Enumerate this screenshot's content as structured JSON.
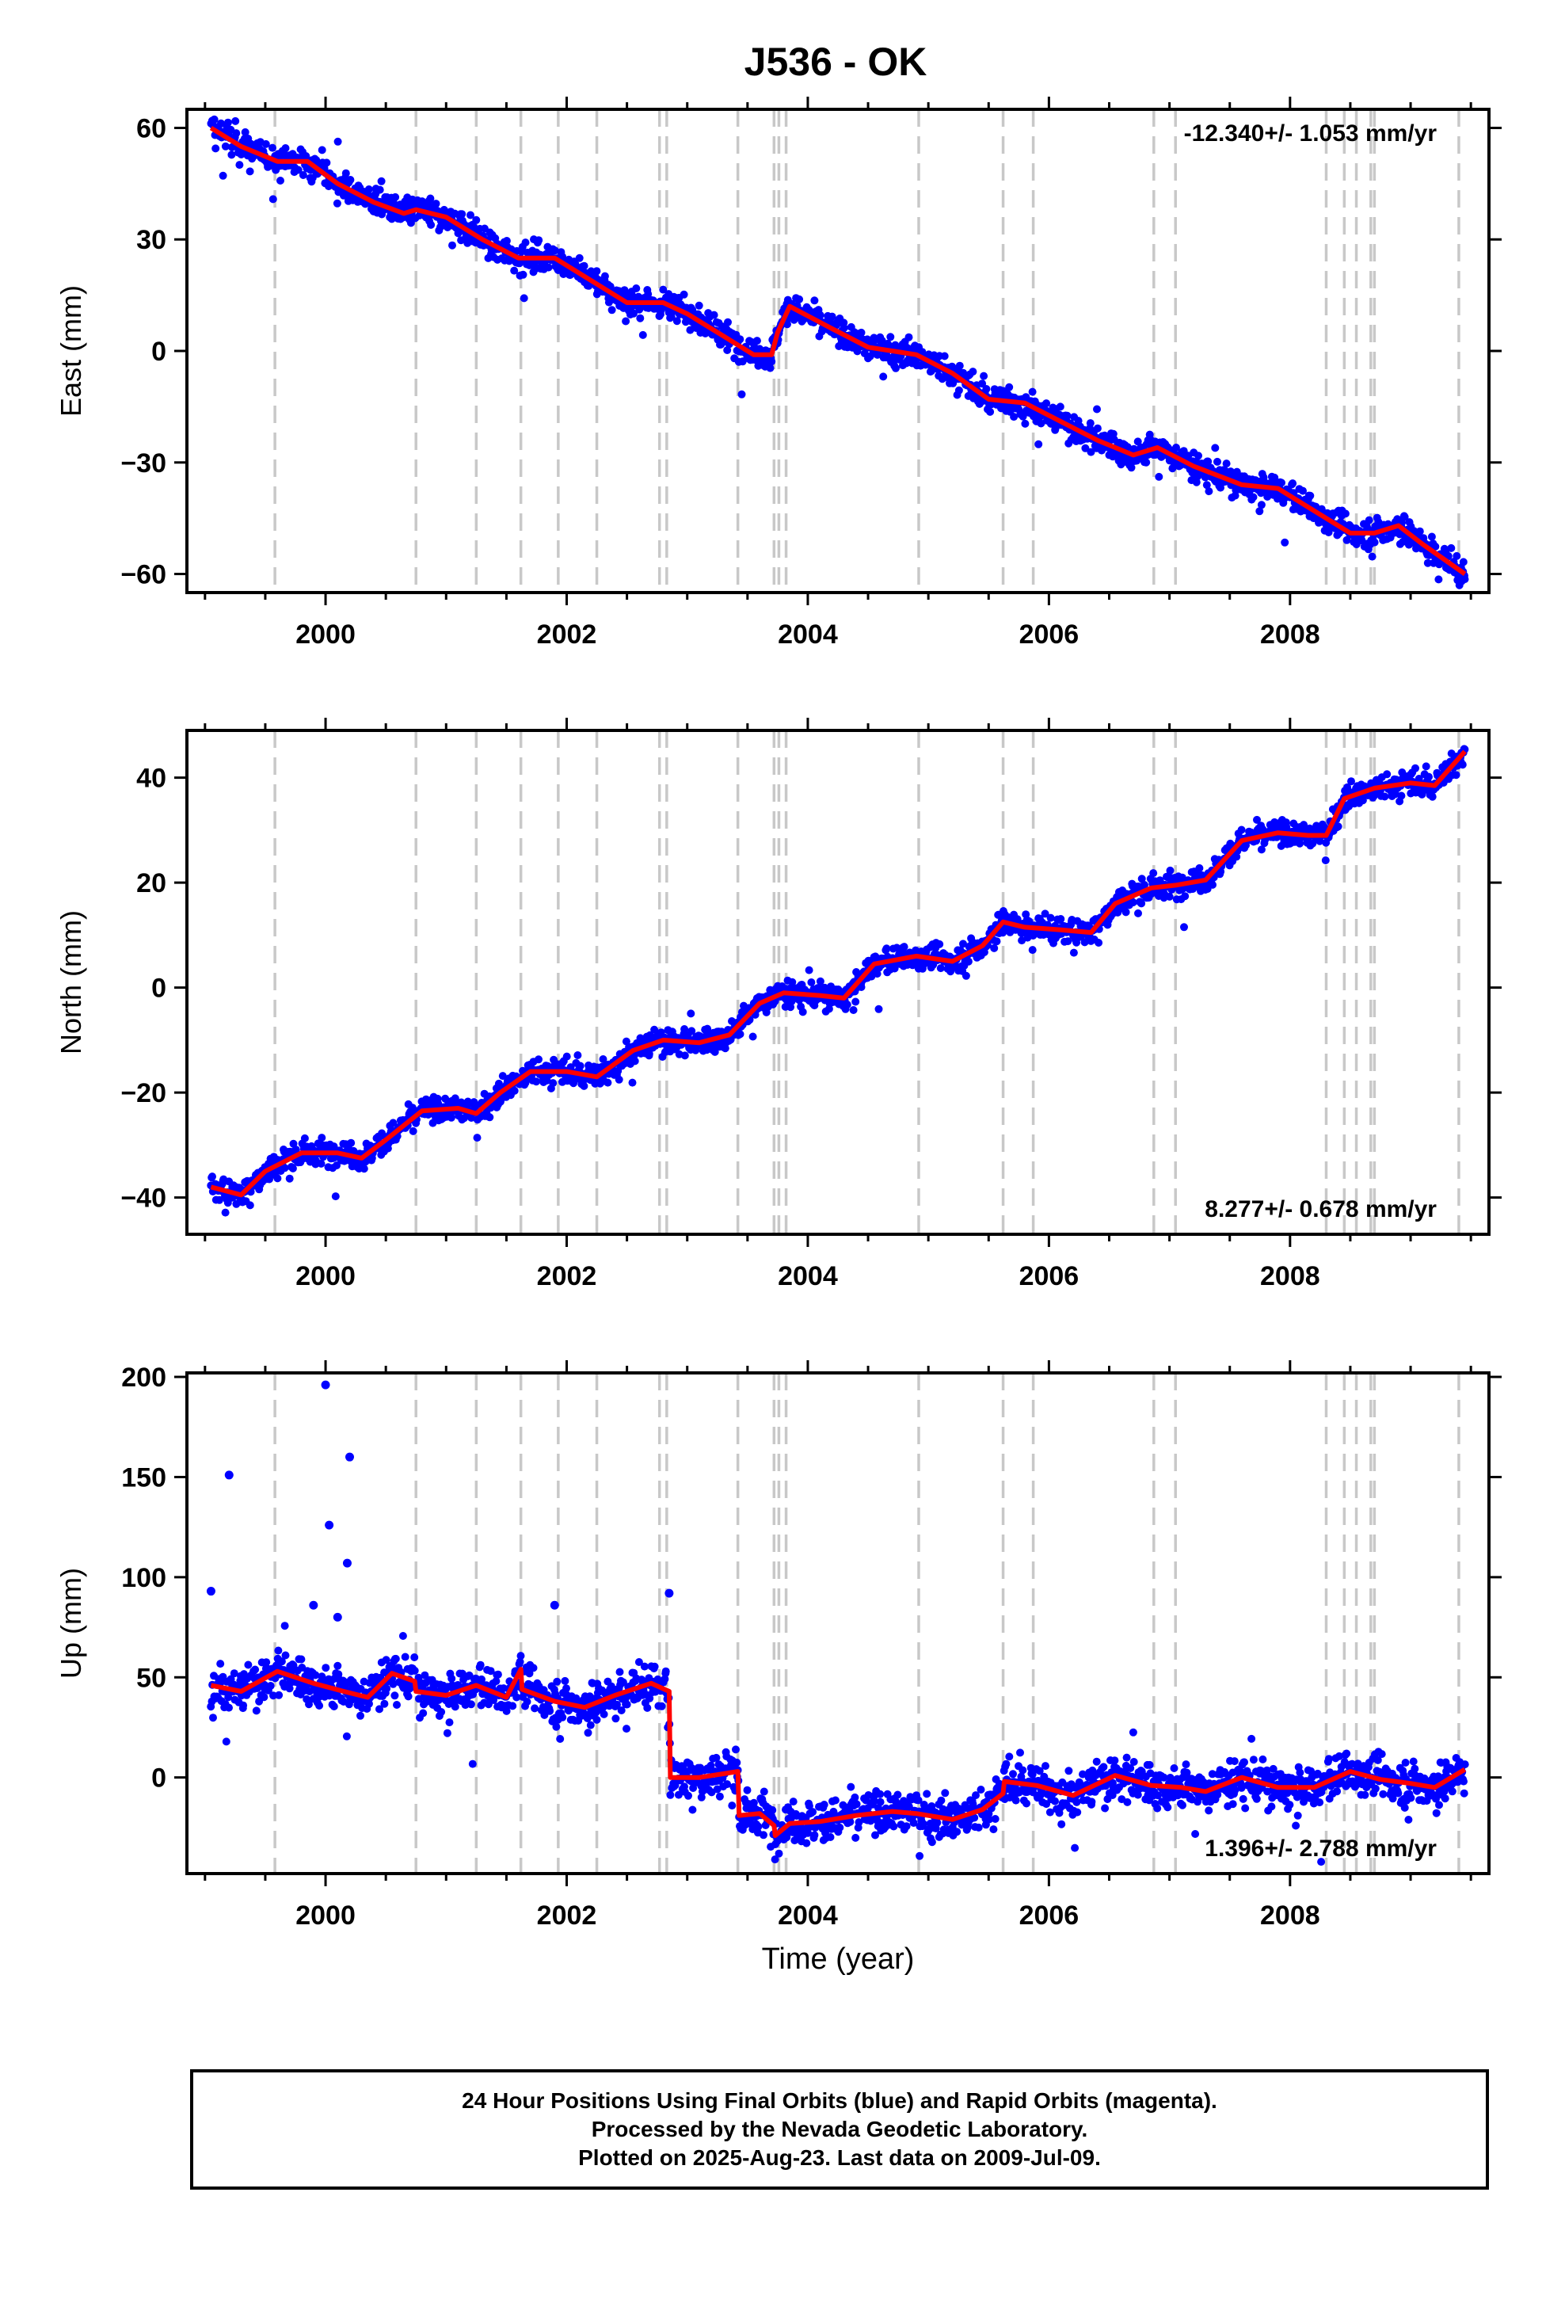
{
  "title": "J536 - OK",
  "colors": {
    "final_orbit_points": "#0000ff",
    "model_line": "#ff0000",
    "event_lines": "#c8c8c8",
    "frame": "#000000"
  },
  "chart_data": [
    {
      "type": "scatter",
      "name": "east-panel",
      "ylabel": "East (mm)",
      "rate_label": "-12.340+/- 1.053 mm/yr",
      "rate_position": "top-right",
      "xlim": [
        1998.85,
        2009.65
      ],
      "ylim": [
        -65,
        65
      ],
      "yticks": [
        -60,
        -30,
        0,
        30,
        60
      ],
      "ytick_labels": [
        "−60",
        "−30",
        "0",
        "30",
        "60"
      ],
      "xticks": [
        2000,
        2002,
        2004,
        2006,
        2008
      ],
      "xtick_labels": [
        "2000",
        "2002",
        "2004",
        "2006",
        "2008"
      ],
      "model": {
        "x": [
          1999.05,
          1999.3,
          1999.6,
          1999.85,
          2000.1,
          2000.4,
          2000.65,
          2000.75,
          2001.0,
          2001.3,
          2001.6,
          2001.9,
          2002.2,
          2002.5,
          2002.8,
          2003.0,
          2003.3,
          2003.55,
          2003.7,
          2003.75,
          2003.85,
          2004.2,
          2004.5,
          2004.9,
          2005.2,
          2005.5,
          2005.8,
          2006.1,
          2006.4,
          2006.7,
          2006.9,
          2007.2,
          2007.6,
          2007.9,
          2008.2,
          2008.5,
          2008.7,
          2008.9,
          2009.1,
          2009.45
        ],
        "y": [
          60,
          55,
          51,
          51,
          45,
          40,
          37,
          38,
          36,
          30,
          25,
          25,
          19,
          13,
          13,
          10,
          4,
          -1,
          -1,
          5,
          12,
          6,
          1,
          -1,
          -6,
          -13,
          -14,
          -19,
          -24,
          -28,
          -26,
          -31,
          -36,
          -37,
          -43,
          -49,
          -49,
          -47,
          -52,
          -60
        ]
      },
      "scatter_spread": 2.6,
      "outliers": []
    },
    {
      "type": "scatter",
      "name": "north-panel",
      "ylabel": "North (mm)",
      "rate_label": "8.277+/- 0.678 mm/yr",
      "rate_position": "bottom-right",
      "xlim": [
        1998.85,
        2009.65
      ],
      "ylim": [
        -47,
        49
      ],
      "yticks": [
        -40,
        -20,
        0,
        20,
        40
      ],
      "ytick_labels": [
        "−40",
        "−20",
        "0",
        "20",
        "40"
      ],
      "xticks": [
        2000,
        2002,
        2004,
        2006,
        2008
      ],
      "xtick_labels": [
        "2000",
        "2002",
        "2004",
        "2006",
        "2008"
      ],
      "model": {
        "x": [
          1999.05,
          1999.3,
          1999.5,
          1999.8,
          2000.1,
          2000.3,
          2000.5,
          2000.8,
          2001.1,
          2001.25,
          2001.45,
          2001.7,
          2002.0,
          2002.25,
          2002.55,
          2002.8,
          2003.1,
          2003.35,
          2003.6,
          2003.8,
          2004.1,
          2004.3,
          2004.55,
          2004.9,
          2005.2,
          2005.45,
          2005.62,
          2005.8,
          2006.1,
          2006.35,
          2006.55,
          2006.85,
          2007.05,
          2007.3,
          2007.6,
          2007.9,
          2008.15,
          2008.3,
          2008.45,
          2008.7,
          2009.0,
          2009.2,
          2009.45
        ],
        "y": [
          -38,
          -39.5,
          -35,
          -31.5,
          -31.5,
          -32.5,
          -29,
          -23.5,
          -23,
          -24,
          -20,
          -16,
          -16,
          -17,
          -12,
          -10,
          -10.5,
          -9,
          -3,
          -1,
          -1.5,
          -2,
          4.5,
          6,
          5,
          8,
          12.5,
          11.5,
          11,
          10.5,
          16,
          19,
          19.5,
          20.5,
          28,
          29.5,
          29,
          29,
          36,
          38,
          39,
          38.5,
          45
        ]
      },
      "scatter_spread": 1.7,
      "outliers": []
    },
    {
      "type": "scatter",
      "name": "up-panel",
      "ylabel": "Up (mm)",
      "rate_label": "1.396+/- 2.788 mm/yr",
      "rate_position": "bottom-right",
      "xlabel": "Time (year)",
      "xlim": [
        1998.85,
        2009.65
      ],
      "ylim": [
        -48,
        202
      ],
      "yticks": [
        0,
        50,
        100,
        150,
        200
      ],
      "ytick_labels": [
        "0",
        "50",
        "100",
        "150",
        "200"
      ],
      "xticks": [
        2000,
        2002,
        2004,
        2006,
        2008
      ],
      "xtick_labels": [
        "2000",
        "2002",
        "2004",
        "2006",
        "2008"
      ],
      "model": {
        "x": [
          1999.05,
          1999.3,
          1999.6,
          1999.9,
          2000.15,
          2000.35,
          2000.55,
          2000.74,
          2000.75,
          2001.0,
          2001.25,
          2001.5,
          2001.62,
          2001.63,
          2001.9,
          2002.15,
          2002.4,
          2002.7,
          2002.85,
          2002.86,
          2003.1,
          2003.42,
          2003.43,
          2003.6,
          2003.72,
          2003.73,
          2003.85,
          2004.1,
          2004.4,
          2004.7,
          2004.9,
          2005.2,
          2005.45,
          2005.62,
          2005.63,
          2005.9,
          2006.2,
          2006.55,
          2006.85,
          2007.1,
          2007.3,
          2007.6,
          2007.9,
          2008.2,
          2008.5,
          2008.75,
          2009.0,
          2009.2,
          2009.45
        ],
        "y": [
          46,
          43,
          53,
          47,
          43,
          40,
          52,
          48,
          43,
          41,
          46,
          40,
          54,
          44,
          38,
          35,
          41,
          47,
          43,
          0,
          0,
          3,
          -19,
          -18,
          -24,
          -29,
          -23,
          -22,
          -19,
          -17,
          -18,
          -21,
          -16,
          -8,
          -2,
          -4,
          -9,
          1,
          -4,
          -5,
          -7,
          0,
          -5,
          -5,
          3,
          -1,
          -3,
          -5,
          4
        ]
      },
      "scatter_spread": 7.5,
      "outliers": [
        [
          1999.2,
          151
        ],
        [
          2000.0,
          196
        ],
        [
          2000.03,
          126
        ],
        [
          2000.2,
          160
        ],
        [
          2000.18,
          107
        ],
        [
          1999.05,
          93
        ],
        [
          2002.85,
          92
        ],
        [
          2001.9,
          86
        ],
        [
          1999.9,
          86
        ],
        [
          2000.1,
          80
        ]
      ]
    }
  ],
  "event_lines_x": [
    1999.58,
    2000.75,
    2001.25,
    2001.62,
    2001.93,
    2002.25,
    2002.77,
    2002.83,
    2003.42,
    2003.72,
    2003.76,
    2003.82,
    2004.92,
    2005.62,
    2005.87,
    2006.87,
    2007.05,
    2008.3,
    2008.45,
    2008.55,
    2008.67,
    2008.7,
    2009.4
  ],
  "footer": {
    "line1": "24 Hour Positions Using Final Orbits (blue) and Rapid Orbits (magenta).",
    "line2": "Processed by the Nevada Geodetic Laboratory.",
    "line3": "Plotted on 2025-Aug-23. Last data on 2009-Jul-09."
  }
}
